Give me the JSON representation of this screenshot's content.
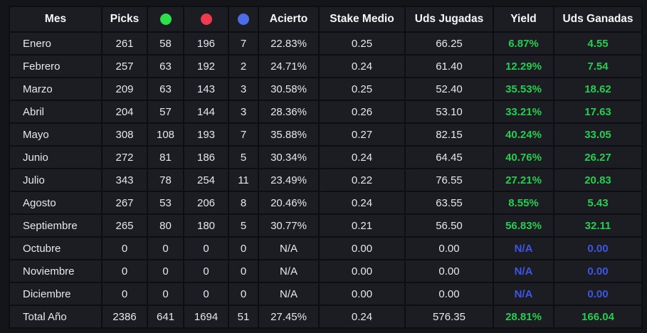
{
  "theme": {
    "page_bg": "#141519",
    "cell_bg": "#1b1d22",
    "grid_color": "#0d0e11",
    "header_text_color": "#f5f6f8",
    "body_text_color": "#e7e8ea",
    "positive_color": "#28cc51",
    "na_color": "#3f55e4",
    "dot_green": "#2ce04a",
    "dot_red": "#ee3b4d",
    "dot_blue": "#4d6ce8"
  },
  "table": {
    "columns": [
      {
        "key": "mes",
        "label": "Mes"
      },
      {
        "key": "picks",
        "label": "Picks"
      },
      {
        "key": "wins",
        "label": "",
        "icon": "green-dot"
      },
      {
        "key": "losses",
        "label": "",
        "icon": "red-dot"
      },
      {
        "key": "voids",
        "label": "",
        "icon": "blue-dot"
      },
      {
        "key": "acierto",
        "label": "Acierto"
      },
      {
        "key": "stake",
        "label": "Stake Medio"
      },
      {
        "key": "uds_jugadas",
        "label": "Uds Jugadas"
      },
      {
        "key": "yield",
        "label": "Yield"
      },
      {
        "key": "uds_ganadas",
        "label": "Uds Ganadas"
      }
    ],
    "rows": [
      {
        "mes": "Enero",
        "picks": "261",
        "wins": "58",
        "losses": "196",
        "voids": "7",
        "acierto": "22.83%",
        "stake": "0.25",
        "uds_jugadas": "66.25",
        "yield": "6.87%",
        "uds_ganadas": "4.55",
        "accent": "green"
      },
      {
        "mes": "Febrero",
        "picks": "257",
        "wins": "63",
        "losses": "192",
        "voids": "2",
        "acierto": "24.71%",
        "stake": "0.24",
        "uds_jugadas": "61.40",
        "yield": "12.29%",
        "uds_ganadas": "7.54",
        "accent": "green"
      },
      {
        "mes": "Marzo",
        "picks": "209",
        "wins": "63",
        "losses": "143",
        "voids": "3",
        "acierto": "30.58%",
        "stake": "0.25",
        "uds_jugadas": "52.40",
        "yield": "35.53%",
        "uds_ganadas": "18.62",
        "accent": "green"
      },
      {
        "mes": "Abril",
        "picks": "204",
        "wins": "57",
        "losses": "144",
        "voids": "3",
        "acierto": "28.36%",
        "stake": "0.26",
        "uds_jugadas": "53.10",
        "yield": "33.21%",
        "uds_ganadas": "17.63",
        "accent": "green"
      },
      {
        "mes": "Mayo",
        "picks": "308",
        "wins": "108",
        "losses": "193",
        "voids": "7",
        "acierto": "35.88%",
        "stake": "0.27",
        "uds_jugadas": "82.15",
        "yield": "40.24%",
        "uds_ganadas": "33.05",
        "accent": "green"
      },
      {
        "mes": "Junio",
        "picks": "272",
        "wins": "81",
        "losses": "186",
        "voids": "5",
        "acierto": "30.34%",
        "stake": "0.24",
        "uds_jugadas": "64.45",
        "yield": "40.76%",
        "uds_ganadas": "26.27",
        "accent": "green"
      },
      {
        "mes": "Julio",
        "picks": "343",
        "wins": "78",
        "losses": "254",
        "voids": "11",
        "acierto": "23.49%",
        "stake": "0.22",
        "uds_jugadas": "76.55",
        "yield": "27.21%",
        "uds_ganadas": "20.83",
        "accent": "green"
      },
      {
        "mes": "Agosto",
        "picks": "267",
        "wins": "53",
        "losses": "206",
        "voids": "8",
        "acierto": "20.46%",
        "stake": "0.24",
        "uds_jugadas": "63.55",
        "yield": "8.55%",
        "uds_ganadas": "5.43",
        "accent": "green"
      },
      {
        "mes": "Septiembre",
        "picks": "265",
        "wins": "80",
        "losses": "180",
        "voids": "5",
        "acierto": "30.77%",
        "stake": "0.21",
        "uds_jugadas": "56.50",
        "yield": "56.83%",
        "uds_ganadas": "32.11",
        "accent": "green"
      },
      {
        "mes": "Octubre",
        "picks": "0",
        "wins": "0",
        "losses": "0",
        "voids": "0",
        "acierto": "N/A",
        "stake": "0.00",
        "uds_jugadas": "0.00",
        "yield": "N/A",
        "uds_ganadas": "0.00",
        "accent": "blue"
      },
      {
        "mes": "Noviembre",
        "picks": "0",
        "wins": "0",
        "losses": "0",
        "voids": "0",
        "acierto": "N/A",
        "stake": "0.00",
        "uds_jugadas": "0.00",
        "yield": "N/A",
        "uds_ganadas": "0.00",
        "accent": "blue"
      },
      {
        "mes": "Diciembre",
        "picks": "0",
        "wins": "0",
        "losses": "0",
        "voids": "0",
        "acierto": "N/A",
        "stake": "0.00",
        "uds_jugadas": "0.00",
        "yield": "N/A",
        "uds_ganadas": "0.00",
        "accent": "blue"
      },
      {
        "mes": "Total Año",
        "picks": "2386",
        "wins": "641",
        "losses": "1694",
        "voids": "51",
        "acierto": "27.45%",
        "stake": "0.24",
        "uds_jugadas": "576.35",
        "yield": "28.81%",
        "uds_ganadas": "166.04",
        "accent": "green",
        "is_total": true
      }
    ]
  }
}
